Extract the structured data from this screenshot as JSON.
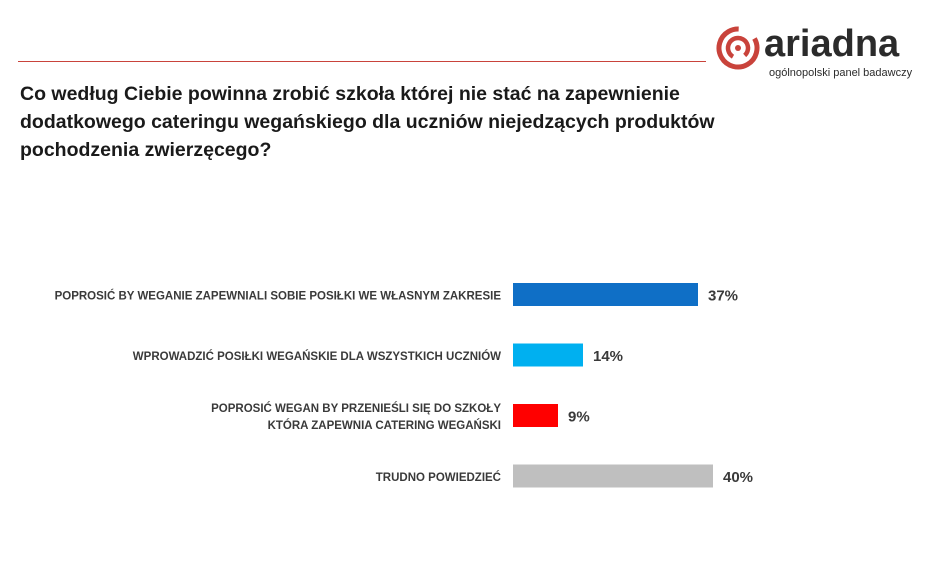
{
  "brand": {
    "name": "ariadna",
    "tagline": "ogólnopolski panel badawczy",
    "accent_color": "#c9433b"
  },
  "chart_data": {
    "type": "bar",
    "orientation": "horizontal",
    "title": "Co według Ciebie powinna zrobić szkoła której nie stać na zapewnienie dodatkowego cateringu wegańskiego dla uczniów niejedzących produktów pochodzenia zwierzęcego?",
    "xlabel": "",
    "ylabel": "",
    "xlim": [
      0,
      40
    ],
    "grid": false,
    "legend": "none",
    "categories": [
      [
        "POPROSIĆ BY WEGANIE ZAPEWNIALI SOBIE POSIŁKI WE WŁASNYM ZAKRESIE"
      ],
      [
        "WPROWADZIĆ POSIŁKI WEGAŃSKIE DLA WSZYSTKICH UCZNIÓW"
      ],
      [
        "POPROSIĆ WEGAN BY PRZENIEŚLI SIĘ DO SZKOŁY",
        "KTÓRA ZAPEWNIA CATERING WEGAŃSKI"
      ],
      [
        "TRUDNO POWIEDZIEĆ"
      ]
    ],
    "values": [
      37,
      14,
      9,
      40
    ],
    "value_labels": [
      "37%",
      "14%",
      "9%",
      "40%"
    ],
    "colors": [
      "#0f6fc6",
      "#00b0f0",
      "#ff0000",
      "#bfbfbf"
    ]
  }
}
